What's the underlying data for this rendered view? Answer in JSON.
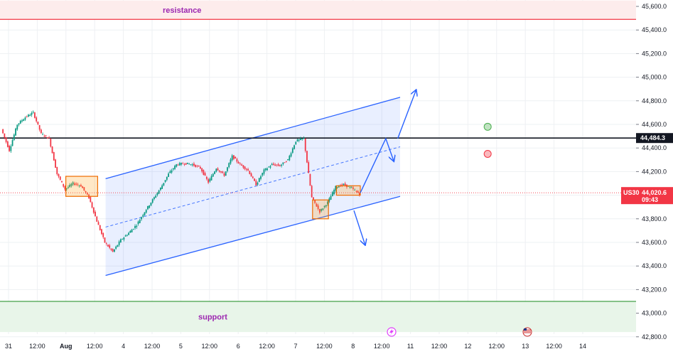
{
  "chart_data": {
    "type": "candlestick",
    "symbol": "US30",
    "ylim": [
      42750,
      45650
    ],
    "y_ticks": [
      "45,600.0",
      "45,400.0",
      "45,200.0",
      "45,000.0",
      "44,800.0",
      "44,600.0",
      "44,400.0",
      "44,200.0",
      "44,000.0",
      "43,800.0",
      "43,600.0",
      "43,400.0",
      "43,200.0",
      "43,000.0",
      "42,800.0"
    ],
    "x_ticks": [
      "31",
      "12:00",
      "Aug",
      "12:00",
      "4",
      "12:00",
      "5",
      "12:00",
      "6",
      "12:00",
      "7",
      "12:00",
      "8",
      "12:00",
      "11",
      "12:00",
      "12",
      "12:00",
      "13",
      "12:00",
      "14"
    ],
    "grid": true,
    "price_path": [
      [
        0,
        44560
      ],
      [
        1,
        44380
      ],
      [
        2,
        44600
      ],
      [
        3,
        44660
      ],
      [
        4,
        44700
      ],
      [
        5,
        44520
      ],
      [
        6,
        44480
      ],
      [
        7,
        44180
      ],
      [
        8,
        44050
      ],
      [
        9,
        44100
      ],
      [
        10,
        44080
      ],
      [
        11,
        43980
      ],
      [
        12,
        43780
      ],
      [
        13,
        43600
      ],
      [
        14,
        43520
      ],
      [
        15,
        43620
      ],
      [
        16,
        43680
      ],
      [
        17,
        43750
      ],
      [
        18,
        43860
      ],
      [
        19,
        43960
      ],
      [
        20,
        44060
      ],
      [
        21,
        44180
      ],
      [
        22,
        44260
      ],
      [
        23,
        44270
      ],
      [
        24,
        44260
      ],
      [
        25,
        44230
      ],
      [
        26,
        44110
      ],
      [
        27,
        44230
      ],
      [
        28,
        44170
      ],
      [
        29,
        44330
      ],
      [
        30,
        44260
      ],
      [
        31,
        44210
      ],
      [
        32,
        44090
      ],
      [
        33,
        44210
      ],
      [
        34,
        44260
      ],
      [
        35,
        44250
      ],
      [
        36,
        44300
      ],
      [
        37,
        44460
      ],
      [
        38,
        44480
      ],
      [
        39,
        43980
      ],
      [
        40,
        43860
      ],
      [
        41,
        43940
      ],
      [
        42,
        44070
      ],
      [
        43,
        44090
      ],
      [
        44,
        44060
      ],
      [
        45,
        44010
      ]
    ],
    "resistance": {
      "label": "resistance",
      "from": 45490,
      "to": 45650,
      "line": 45490
    },
    "support": {
      "label": "support",
      "from": 42840,
      "to": 43100,
      "line": 43100
    },
    "horizontal_level": {
      "value": 44484.3,
      "label": "44,484.3"
    },
    "current_price": {
      "value": 44020.6,
      "symbol": "US30",
      "price_label": "44,020.6",
      "countdown": "09:43"
    },
    "channel": {
      "lower": [
        [
          13,
          43320
        ],
        [
          50,
          43990
        ]
      ],
      "upper": [
        [
          13,
          44140
        ],
        [
          50,
          44830
        ]
      ],
      "mid": [
        [
          13,
          43730
        ],
        [
          50,
          44410
        ]
      ]
    },
    "highlight_boxes": [
      {
        "x": [
          8,
          12
        ],
        "y": [
          43990,
          44160
        ]
      },
      {
        "x": [
          39,
          41
        ],
        "y": [
          43800,
          43960
        ]
      },
      {
        "x": [
          42,
          45
        ],
        "y": [
          44000,
          44080
        ]
      }
    ],
    "arrows": [
      {
        "points": [
          [
            45,
            44020
          ],
          [
            48.2,
            44480
          ],
          [
            49.2,
            44290
          ]
        ]
      },
      {
        "points": [
          [
            49.7,
            44480
          ],
          [
            52,
            44890
          ]
        ]
      },
      {
        "points": [
          [
            44.2,
            43870
          ],
          [
            45.6,
            43580
          ]
        ]
      }
    ],
    "signals": [
      {
        "type": "buy",
        "color": "#4caf50",
        "x": 61,
        "value": 44580
      },
      {
        "type": "sell",
        "color": "#f23645",
        "x": 61,
        "value": 44350
      }
    ],
    "event_markers": [
      "lightning-icon",
      "us-flag-icon"
    ],
    "colors": {
      "up": "#089981",
      "down": "#f23645",
      "channel": "#2962ff",
      "resistance_fill": "#ffebee",
      "support_fill": "#e8f5e9",
      "zone_label": "#9c27b0"
    }
  }
}
